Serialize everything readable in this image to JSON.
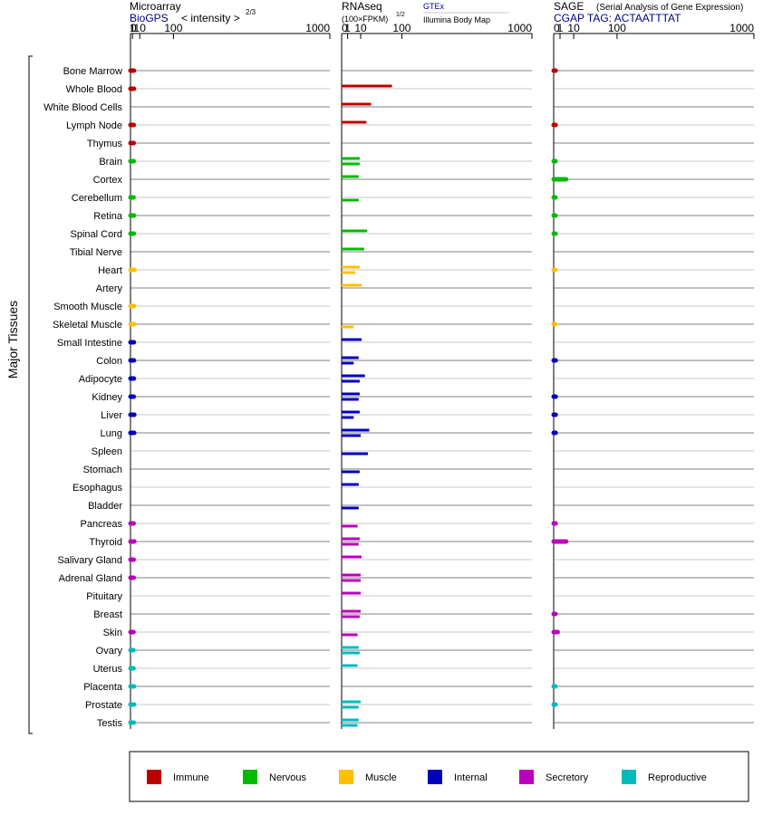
{
  "colors": {
    "Immune": "#bb0000",
    "Nervous": "#00bb00",
    "Muscle": "#ffc000",
    "Internal": "#0000bb",
    "Secretory": "#bb00bb",
    "Reproductive": "#00bbbb",
    "link": "#000080",
    "axis": "#000000",
    "row_line_dark": "#808080",
    "row_line_light": "#c8c8c8"
  },
  "headers": {
    "microarray": {
      "title": "Microarray",
      "source": "BioGPS",
      "unit_main": "< intensity >",
      "unit_exp": "2/3"
    },
    "rnaseq": {
      "title": "RNAseq",
      "unit_main": "(100×FPKM)",
      "unit_exp": "1/2",
      "source1": "GTEx",
      "source2": "Illumina Body Map"
    },
    "sage": {
      "title": "SAGE",
      "subtitle": "(Serial Analysis of Gene Expression)",
      "tag": "CGAP TAG: ACTAATTTAT"
    }
  },
  "chart_data": [
    {
      "type": "bar",
      "panel": "Microarray",
      "xscale": "power-2/3",
      "xlim": [
        0,
        1000
      ],
      "xticks": [
        "0",
        "1",
        "10",
        "100",
        "1000"
      ],
      "ylabel": "Major Tissues",
      "categories": [
        "Bone Marrow",
        "Whole Blood",
        "White Blood Cells",
        "Lymph Node",
        "Thymus",
        "Brain",
        "Cortex",
        "Cerebellum",
        "Retina",
        "Spinal Cord",
        "Tibial Nerve",
        "Heart",
        "Artery",
        "Smooth Muscle",
        "Skeletal Muscle",
        "Small Intestine",
        "Colon",
        "Adipocyte",
        "Kidney",
        "Liver",
        "Lung",
        "Spleen",
        "Stomach",
        "Esophagus",
        "Bladder",
        "Pancreas",
        "Thyroid",
        "Salivary Gland",
        "Adrenal Gland",
        "Pituitary",
        "Breast",
        "Skin",
        "Ovary",
        "Uterus",
        "Placenta",
        "Prostate",
        "Testis"
      ],
      "groups": [
        "Immune",
        "Immune",
        "Immune",
        "Immune",
        "Immune",
        "Nervous",
        "Nervous",
        "Nervous",
        "Nervous",
        "Nervous",
        "Nervous",
        "Muscle",
        "Muscle",
        "Muscle",
        "Muscle",
        "Internal",
        "Internal",
        "Internal",
        "Internal",
        "Internal",
        "Internal",
        "Internal",
        "Internal",
        "Internal",
        "Internal",
        "Secretory",
        "Secretory",
        "Secretory",
        "Secretory",
        "Secretory",
        "Secretory",
        "Secretory",
        "Reproductive",
        "Reproductive",
        "Reproductive",
        "Reproductive",
        "Reproductive"
      ],
      "values": [
        2.3,
        2.3,
        null,
        2.1,
        2.0,
        2.0,
        null,
        1.9,
        2.4,
        2.2,
        null,
        2.8,
        null,
        2.4,
        2.5,
        2.2,
        2.3,
        2.2,
        2.1,
        2.6,
        2.5,
        null,
        null,
        null,
        null,
        2.0,
        2.6,
        2.0,
        2.1,
        null,
        null,
        1.9,
        1.7,
        1.9,
        2.3,
        2.4,
        2.1
      ]
    },
    {
      "type": "bar",
      "panel": "RNAseq",
      "xscale": "power-1/2",
      "xlim": [
        0,
        1000
      ],
      "xticks": [
        "0",
        "1",
        "10",
        "100",
        "1000"
      ],
      "categories": [
        "Bone Marrow",
        "Whole Blood",
        "White Blood Cells",
        "Lymph Node",
        "Thymus",
        "Brain",
        "Cortex",
        "Cerebellum",
        "Retina",
        "Spinal Cord",
        "Tibial Nerve",
        "Heart",
        "Artery",
        "Smooth Muscle",
        "Skeletal Muscle",
        "Small Intestine",
        "Colon",
        "Adipocyte",
        "Kidney",
        "Liver",
        "Lung",
        "Spleen",
        "Stomach",
        "Esophagus",
        "Bladder",
        "Pancreas",
        "Thyroid",
        "Salivary Gland",
        "Adrenal Gland",
        "Pituitary",
        "Breast",
        "Skin",
        "Ovary",
        "Uterus",
        "Placenta",
        "Prostate",
        "Testis"
      ],
      "series": [
        {
          "name": "GTEx",
          "values": [
            null,
            70,
            24,
            17,
            null,
            9,
            8,
            null,
            null,
            18,
            14,
            9,
            11,
            null,
            null,
            11,
            8,
            15,
            9,
            9,
            21,
            null,
            null,
            8,
            null,
            null,
            9,
            11,
            10,
            10,
            10,
            null,
            8,
            7,
            null,
            10,
            8
          ]
        },
        {
          "name": "Illumina Body Map",
          "values": [
            null,
            null,
            null,
            null,
            null,
            9,
            null,
            8,
            null,
            null,
            null,
            5,
            null,
            null,
            4,
            null,
            4,
            9,
            8,
            4,
            10,
            19,
            9,
            null,
            8,
            7,
            8,
            null,
            10,
            null,
            9,
            7,
            9,
            null,
            null,
            8,
            7
          ]
        }
      ]
    },
    {
      "type": "bar",
      "panel": "SAGE",
      "xscale": "power-1/2",
      "xlim": [
        0,
        1000
      ],
      "xticks": [
        "0",
        "1",
        "10",
        "100",
        "1000"
      ],
      "categories": [
        "Bone Marrow",
        "Whole Blood",
        "White Blood Cells",
        "Lymph Node",
        "Thymus",
        "Brain",
        "Cortex",
        "Cerebellum",
        "Retina",
        "Spinal Cord",
        "Tibial Nerve",
        "Heart",
        "Artery",
        "Smooth Muscle",
        "Skeletal Muscle",
        "Small Intestine",
        "Colon",
        "Adipocyte",
        "Kidney",
        "Liver",
        "Lung",
        "Spleen",
        "Stomach",
        "Esophagus",
        "Bladder",
        "Pancreas",
        "Thyroid",
        "Salivary Gland",
        "Adrenal Gland",
        "Pituitary",
        "Breast",
        "Skin",
        "Ovary",
        "Uterus",
        "Placenta",
        "Prostate",
        "Testis"
      ],
      "values": [
        0.1,
        null,
        null,
        0.1,
        null,
        0.05,
        3.8,
        0.05,
        0.05,
        0.05,
        null,
        0.02,
        null,
        null,
        0.02,
        null,
        0.1,
        null,
        0.1,
        0.1,
        0.1,
        null,
        null,
        null,
        null,
        0.1,
        3.9,
        null,
        null,
        null,
        0.05,
        0.4,
        null,
        null,
        0.05,
        0.05,
        null
      ]
    }
  ],
  "legend": {
    "entries": [
      {
        "label": "Immune",
        "group": "Immune"
      },
      {
        "label": "Nervous",
        "group": "Nervous"
      },
      {
        "label": "Muscle",
        "group": "Muscle"
      },
      {
        "label": "Internal",
        "group": "Internal"
      },
      {
        "label": "Secretory",
        "group": "Secretory"
      },
      {
        "label": "Reproductive",
        "group": "Reproductive"
      }
    ]
  }
}
